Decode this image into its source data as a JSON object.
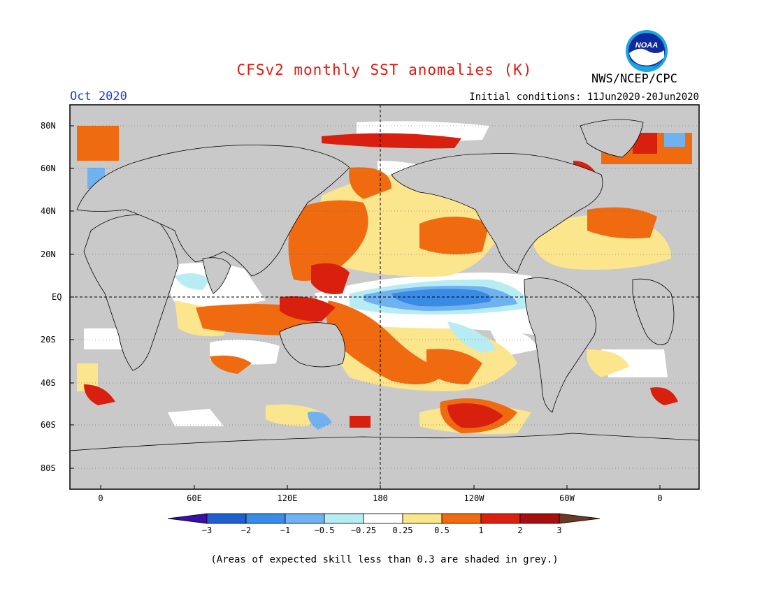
{
  "title": "CFSv2 monthly SST anomalies (K)",
  "month": "Oct 2020",
  "init_label": "Initial conditions: 11Jun2020-20Jun2020",
  "agency": "NWS/NCEP/CPC",
  "logo_text": "NOAA",
  "footnote": "(Areas of expected skill less than 0.3 are shaded in grey.)",
  "x_ticks": [
    "0",
    "60E",
    "120E",
    "180",
    "120W",
    "60W",
    "0"
  ],
  "y_ticks": [
    "80N",
    "60N",
    "40N",
    "20N",
    "EQ",
    "20S",
    "40S",
    "60S",
    "80S"
  ],
  "colorbar": {
    "labels": [
      "−3",
      "−2",
      "−1",
      "−0.5",
      "−0.25",
      "0.25",
      "0.5",
      "1",
      "2",
      "3"
    ],
    "colors": [
      "#3a0ea8",
      "#1f5fd0",
      "#3a8be6",
      "#6fb2ef",
      "#b8ecf4",
      "#ffffff",
      "#fbe58d",
      "#f7b23b",
      "#f06a10",
      "#d9200f",
      "#a50f0f",
      "#6b3a24"
    ]
  },
  "colors": {
    "title": "#e0190f",
    "month": "#1f3fcf",
    "land": "#c9c9c9",
    "skill_grey": "#c9c9c9"
  }
}
